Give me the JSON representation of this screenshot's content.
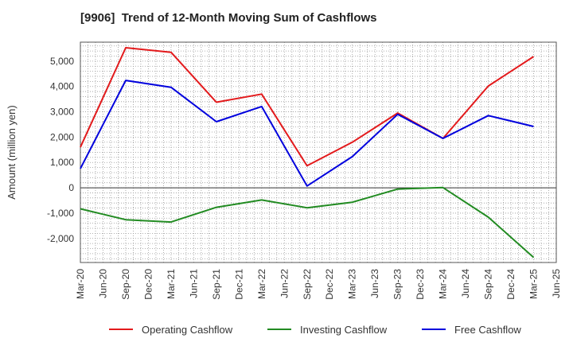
{
  "chart_data": {
    "type": "line",
    "title": "[9906]  Trend of 12-Month Moving Sum of Cashflows",
    "ylabel": "Amount (million yen)",
    "xlabel": "",
    "categories": [
      "Mar-20",
      "Jun-20",
      "Sep-20",
      "Dec-20",
      "Mar-21",
      "Jun-21",
      "Sep-21",
      "Dec-21",
      "Mar-22",
      "Jun-22",
      "Sep-22",
      "Dec-22",
      "Mar-23",
      "Jun-23",
      "Sep-23",
      "Dec-23",
      "Mar-24",
      "Jun-24",
      "Sep-24",
      "Dec-24",
      "Mar-25",
      "Jun-25"
    ],
    "ylim": [
      -2950,
      5750
    ],
    "yticks": [
      -2000,
      -1000,
      0,
      1000,
      2000,
      3000,
      4000,
      5000
    ],
    "ytick_labels": [
      "-2,000",
      "-1,000",
      "0",
      "1,000",
      "2,000",
      "3,000",
      "4,000",
      "5,000"
    ],
    "grid": true,
    "legend_position": "bottom",
    "series": [
      {
        "name": "Operating Cashflow",
        "color": "#e31a1c",
        "x": [
          "Mar-20",
          "Sep-20",
          "Mar-21",
          "Sep-21",
          "Mar-22",
          "Sep-22",
          "Mar-23",
          "Sep-23",
          "Mar-24",
          "Sep-24",
          "Mar-25"
        ],
        "values": [
          1600,
          5530,
          5350,
          3380,
          3700,
          870,
          1800,
          2950,
          1950,
          4020,
          5180
        ]
      },
      {
        "name": "Investing Cashflow",
        "color": "#228b22",
        "x": [
          "Mar-20",
          "Sep-20",
          "Mar-21",
          "Sep-21",
          "Mar-22",
          "Sep-22",
          "Mar-23",
          "Sep-23",
          "Mar-24",
          "Sep-24",
          "Mar-25"
        ],
        "values": [
          -830,
          -1260,
          -1350,
          -770,
          -480,
          -790,
          -570,
          -50,
          10,
          -1160,
          -2750
        ]
      },
      {
        "name": "Free Cashflow",
        "color": "#0000dd",
        "x": [
          "Mar-20",
          "Sep-20",
          "Mar-21",
          "Sep-21",
          "Mar-22",
          "Sep-22",
          "Mar-23",
          "Sep-23",
          "Mar-24",
          "Sep-24",
          "Mar-25"
        ],
        "values": [
          760,
          4240,
          3970,
          2610,
          3210,
          70,
          1230,
          2900,
          1950,
          2850,
          2420
        ]
      }
    ]
  }
}
